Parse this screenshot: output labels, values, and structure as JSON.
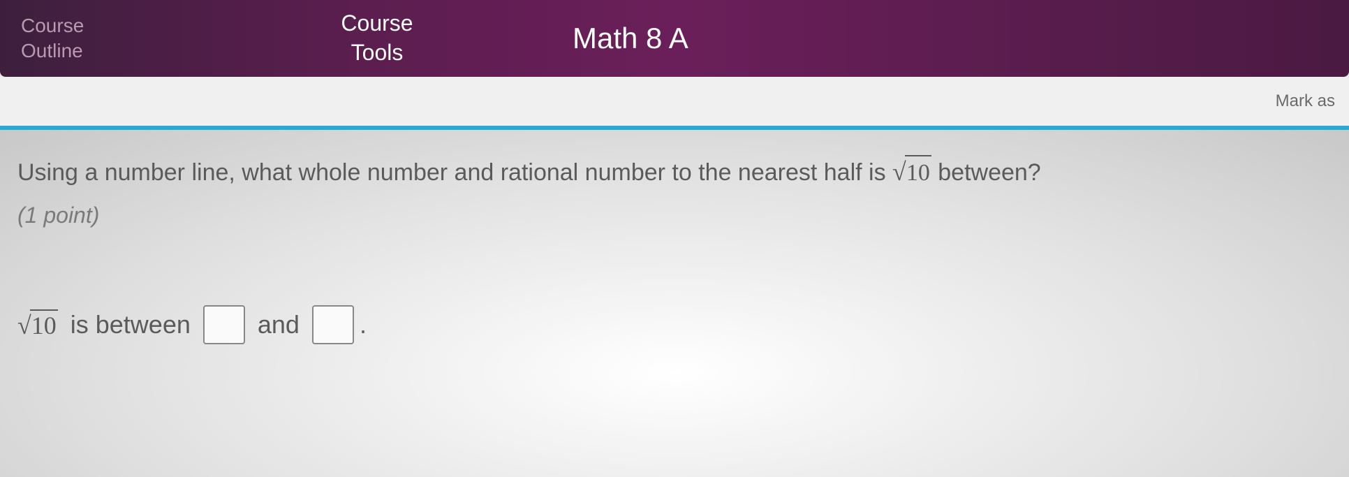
{
  "navbar": {
    "outline_line1": "Course",
    "outline_line2": "Outline",
    "tools_line1": "Course",
    "tools_line2": "Tools",
    "course_title": "Math 8 A"
  },
  "toolbar": {
    "mark_as": "Mark as"
  },
  "question": {
    "prompt_before": "Using a number line, what whole number and rational number to the nearest half is ",
    "sqrt_value": "10",
    "prompt_after": " between?",
    "points": "(1 point)"
  },
  "answer": {
    "sqrt_value": "10",
    "between_text": "is between",
    "and_text": "and",
    "input1": "",
    "input2": ""
  },
  "colors": {
    "navbar_bg": "#5a1e4e",
    "navbar_inactive": "#b89bb0",
    "navbar_active": "#ffffff",
    "progress": "#2ba8d4",
    "text": "#5a5a5a",
    "muted": "#7a7a7a"
  }
}
